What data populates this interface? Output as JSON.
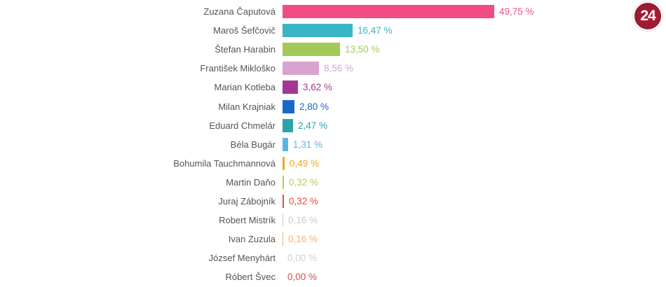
{
  "logo": {
    "text": "24",
    "bg_color": "#9e1b33"
  },
  "chart_data": {
    "type": "bar",
    "orientation": "horizontal",
    "title": "",
    "xlabel": "",
    "ylabel": "",
    "max_value": 49.75,
    "value_suffix": "%",
    "series": [
      {
        "name": "Zuzana Čaputová",
        "value": 49.75,
        "label": "49,75 %",
        "color": "#f04c82"
      },
      {
        "name": "Maroš Šefčovič",
        "value": 16.47,
        "label": "16,47 %",
        "color": "#38b6c6"
      },
      {
        "name": "Štefan Harabin",
        "value": 13.5,
        "label": "13,50 %",
        "color": "#a2c957"
      },
      {
        "name": "František Mikloško",
        "value": 8.56,
        "label": "8,56 %",
        "color": "#d8a3d0"
      },
      {
        "name": "Marian Kotleba",
        "value": 3.62,
        "label": "3,62 %",
        "color": "#a23795"
      },
      {
        "name": "Milan Krajniak",
        "value": 2.8,
        "label": "2,80 %",
        "color": "#1b67c9"
      },
      {
        "name": "Eduard Chmelár",
        "value": 2.47,
        "label": "2,47 %",
        "color": "#2ba3ab"
      },
      {
        "name": "Béla Bugár",
        "value": 1.31,
        "label": "1,31 %",
        "color": "#5ab4e5"
      },
      {
        "name": "Bohumila Tauchmannová",
        "value": 0.49,
        "label": "0,49 %",
        "color": "#f7a51b"
      },
      {
        "name": "Martin Daňo",
        "value": 0.32,
        "label": "0,32 %",
        "color": "#b8cf4e"
      },
      {
        "name": "Juraj Zábojník",
        "value": 0.32,
        "label": "0,32 %",
        "color": "#e84b3c"
      },
      {
        "name": "Robert Mistrík",
        "value": 0.16,
        "label": "0,16 %",
        "color": "#cccccc"
      },
      {
        "name": "Ivan Zuzula",
        "value": 0.16,
        "label": "0,16 %",
        "color": "#f5b26b"
      },
      {
        "name": "József Menyhárt",
        "value": 0.0,
        "label": "0,00 %",
        "color": "#d0d0d0"
      },
      {
        "name": "Róbert Švec",
        "value": 0.0,
        "label": "0,00 %",
        "color": "#dd4b4b"
      }
    ]
  }
}
